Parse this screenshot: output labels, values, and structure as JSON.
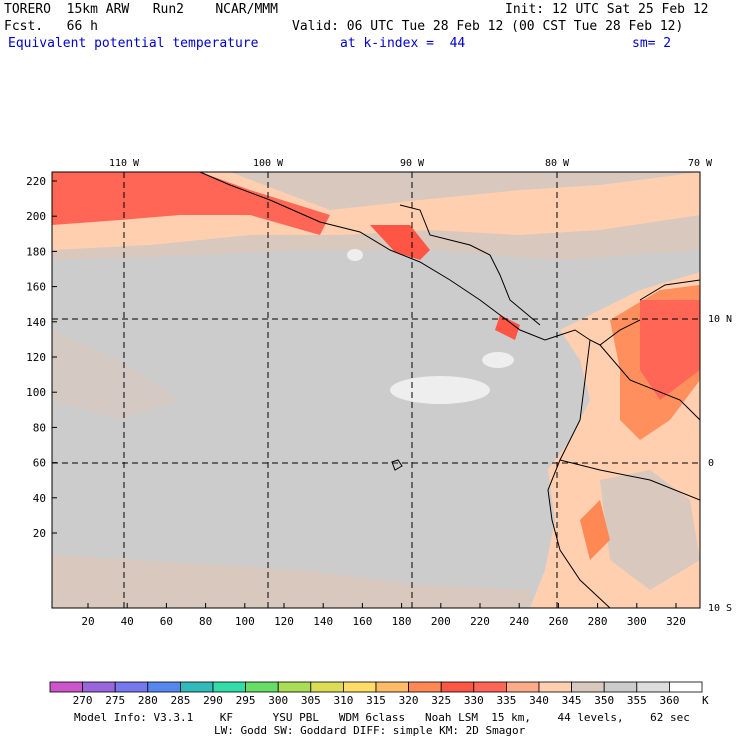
{
  "header": {
    "line1_left": "TORERO  15km ARW   Run2    NCAR/MMM",
    "line1_right": "Init: 12 UTC Sat 25 Feb 12",
    "line2_left": "Fcst.   66 h",
    "line2_right": "Valid: 06 UTC Tue 28 Feb 12 (00 CST Tue 28 Feb 12)",
    "field_name": "Equivalent potential temperature",
    "level_label": "at k-index =  44",
    "smoothing": "sm= 2"
  },
  "map": {
    "top_lon_labels": [
      "110 W",
      "100 W",
      "90 W",
      "80 W",
      "70 W"
    ],
    "right_lat_labels": [
      "10 N",
      "0",
      "10 S"
    ],
    "left_ticks": [
      "220",
      "200",
      "180",
      "160",
      "140",
      "120",
      "100",
      "80",
      "60",
      "40",
      "20"
    ],
    "bottom_ticks": [
      "20",
      "40",
      "60",
      "80",
      "100",
      "120",
      "140",
      "160",
      "180",
      "200",
      "220",
      "240",
      "260",
      "280",
      "300",
      "320"
    ]
  },
  "colorbar": {
    "levels": [
      "270",
      "275",
      "280",
      "285",
      "290",
      "295",
      "300",
      "305",
      "310",
      "315",
      "320",
      "325",
      "330",
      "335",
      "340",
      "345",
      "350",
      "355",
      "360"
    ],
    "unit": "K",
    "colors": [
      "#cc55cc",
      "#9966dd",
      "#7777ee",
      "#5588ee",
      "#33bbbb",
      "#33ddaa",
      "#66dd66",
      "#aadd55",
      "#dddd55",
      "#ffdd66",
      "#ffbb66",
      "#ff8855",
      "#ff5544",
      "#ff6655",
      "#ffaa88",
      "#ffcfb0",
      "#d9c8bd",
      "#cccccc",
      "#dddddd",
      "#ffffff"
    ]
  },
  "footer": {
    "line1": "Model Info: V3.3.1    KF      YSU PBL   WDM 6class   Noah LSM  15 km,    44 levels,    62 sec",
    "line2": "LW: Godd SW: Goddard DIFF: simple KM: 2D Smagor"
  }
}
